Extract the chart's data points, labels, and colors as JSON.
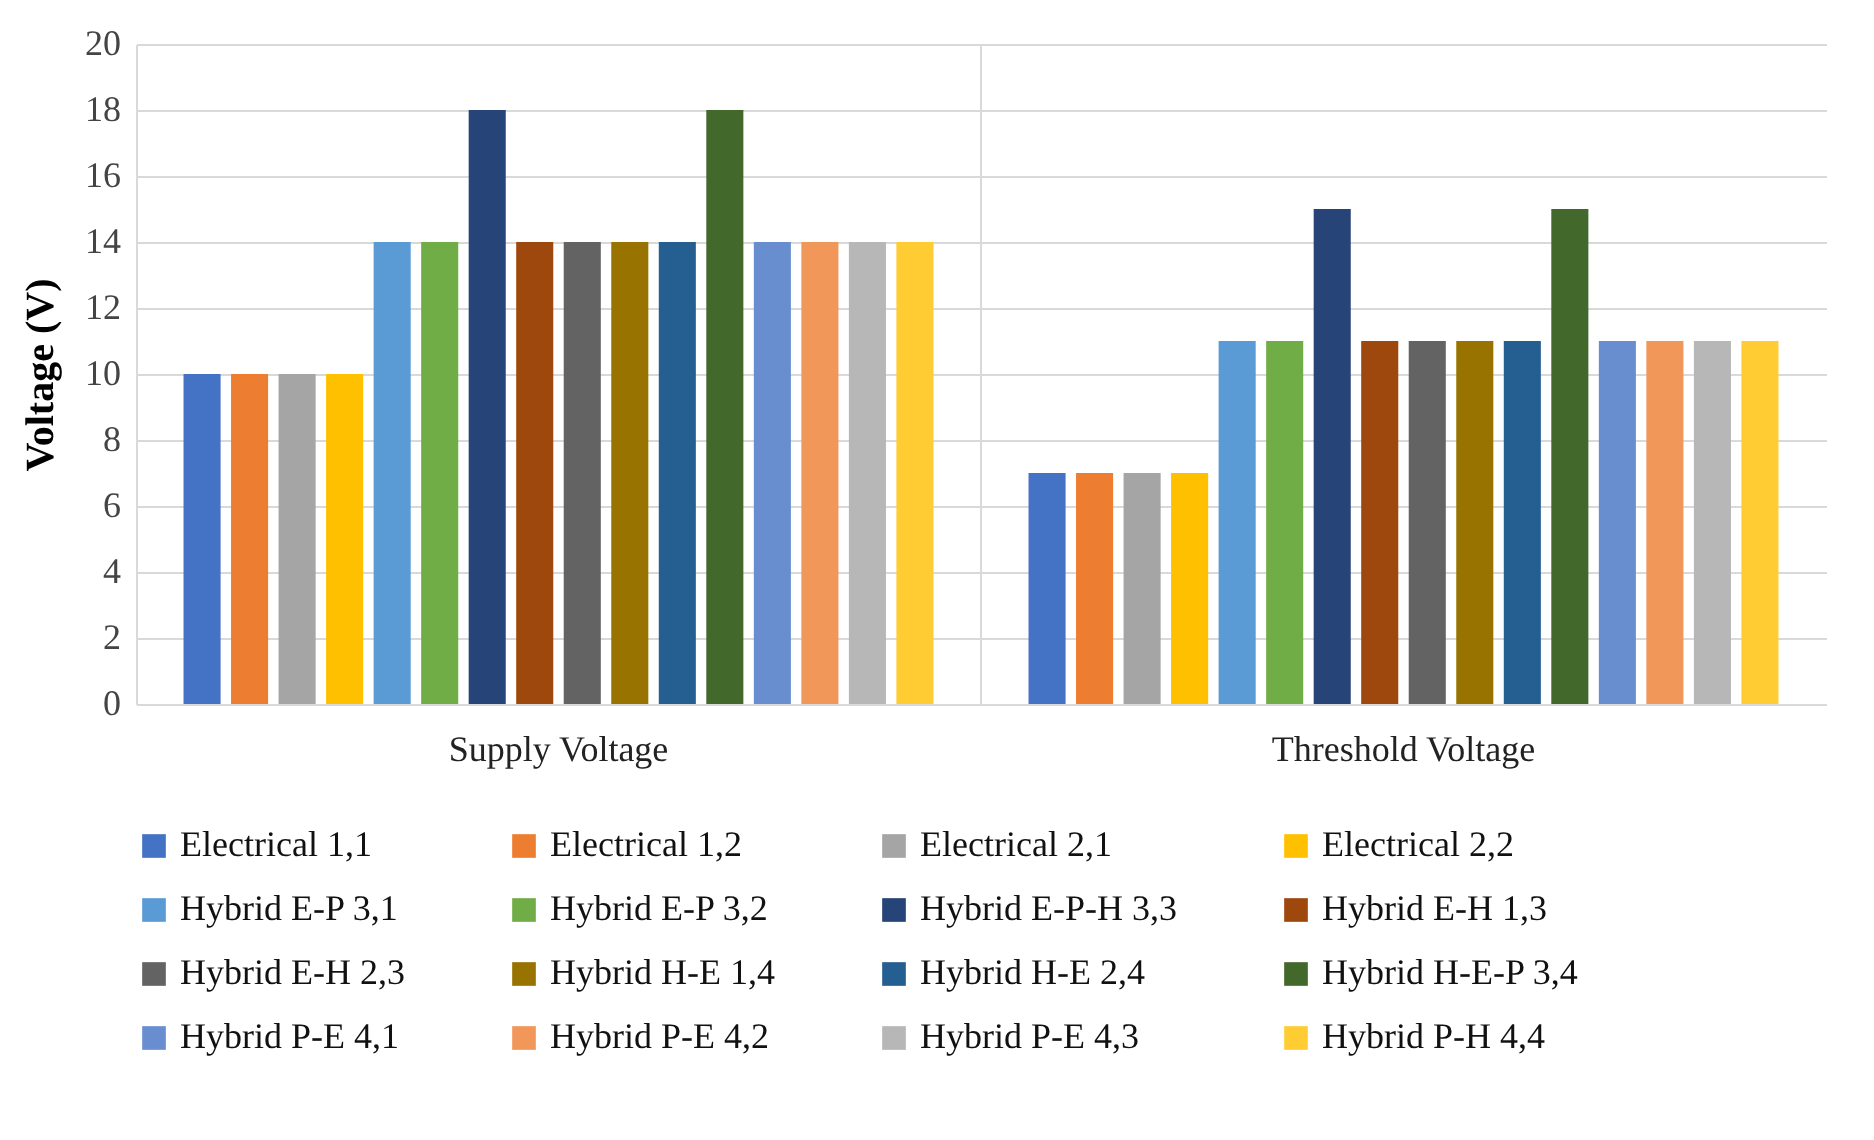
{
  "chart_data": {
    "type": "bar",
    "ylabel": "Voltage (V)",
    "categories": [
      "Supply Voltage",
      "Threshold  Voltage"
    ],
    "series": [
      {
        "name": "Electrical 1,1",
        "color": "#4472c4",
        "values": [
          10,
          7
        ]
      },
      {
        "name": "Electrical 1,2",
        "color": "#ed7d31",
        "values": [
          10,
          7
        ]
      },
      {
        "name": "Electrical 2,1",
        "color": "#a5a5a5",
        "values": [
          10,
          7
        ]
      },
      {
        "name": "Electrical 2,2",
        "color": "#ffc000",
        "values": [
          10,
          7
        ]
      },
      {
        "name": "Hybrid E-P 3,1",
        "color": "#5b9bd5",
        "values": [
          14,
          11
        ]
      },
      {
        "name": "Hybrid E-P 3,2",
        "color": "#70ad47",
        "values": [
          14,
          11
        ]
      },
      {
        "name": "Hybrid E-P-H 3,3",
        "color": "#264478",
        "values": [
          18,
          15
        ]
      },
      {
        "name": "Hybrid E-H 1,3",
        "color": "#9e480e",
        "values": [
          14,
          11
        ]
      },
      {
        "name": "Hybrid E-H 2,3",
        "color": "#636363",
        "values": [
          14,
          11
        ]
      },
      {
        "name": "Hybrid H-E 1,4",
        "color": "#997300",
        "values": [
          14,
          11
        ]
      },
      {
        "name": "Hybrid H-E 2,4",
        "color": "#255e91",
        "values": [
          14,
          11
        ]
      },
      {
        "name": "Hybrid H-E-P 3,4",
        "color": "#43682b",
        "values": [
          18,
          15
        ]
      },
      {
        "name": "Hybrid P-E 4,1",
        "color": "#698ed0",
        "values": [
          14,
          11
        ]
      },
      {
        "name": "Hybrid P-E 4,2",
        "color": "#f1975a",
        "values": [
          14,
          11
        ]
      },
      {
        "name": "Hybrid P-E 4,3",
        "color": "#b7b7b7",
        "values": [
          14,
          11
        ]
      },
      {
        "name": "Hybrid P-H 4,4",
        "color": "#ffcd33",
        "values": [
          14,
          11
        ]
      }
    ],
    "ylim": [
      0,
      20
    ],
    "yticks": [
      0,
      2,
      4,
      6,
      8,
      10,
      12,
      14,
      16,
      18,
      20
    ],
    "grid": true,
    "legend": "bottom"
  }
}
